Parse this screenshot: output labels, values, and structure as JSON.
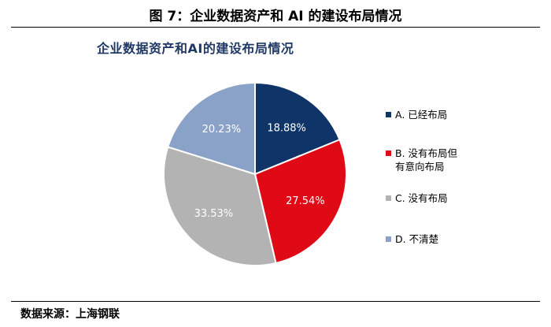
{
  "figure_caption": "图 7：企业数据资产和 AI 的建设布局情况",
  "source": "数据来源：上海钢联",
  "chart_data": {
    "type": "pie",
    "title": "企业数据资产和AI的建设布局情况",
    "categories": [
      "A. 已经布局",
      "B. 没有布局但有意向布局",
      "C. 没有布局",
      "D. 不清楚"
    ],
    "values": [
      18.88,
      27.54,
      33.53,
      20.23
    ],
    "labels": [
      "18.88%",
      "27.54%",
      "33.53%",
      "20.23%"
    ],
    "colors": [
      "#0e3468",
      "#e00a17",
      "#b3b3b3",
      "#8aa2c8"
    ],
    "label_colors": [
      "#ffffff",
      "#ffffff",
      "#ffffff",
      "#ffffff"
    ],
    "legend": [
      "A. 已经布局",
      "B. 没有布局但有意向布局",
      "C. 没有布局",
      "D. 不清楚"
    ],
    "legend_position": "right",
    "start_angle_deg": 0,
    "direction": "clockwise"
  }
}
